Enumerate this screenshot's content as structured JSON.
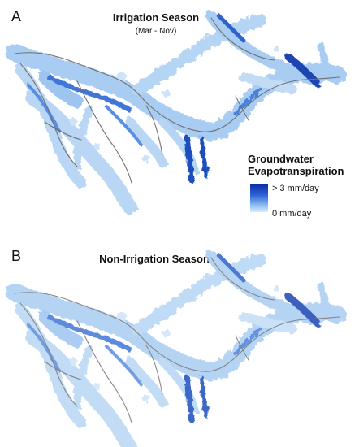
{
  "panel_a": {
    "letter": "A",
    "title": "Irrigation Season",
    "subtitle": "(Mar - Nov)"
  },
  "panel_b": {
    "letter": "B",
    "title": "Non-Irrigation Season"
  },
  "legend": {
    "title_line1": "Groundwater",
    "title_line2": "Evapotranspiration",
    "max_label": "> 3 mm/day",
    "min_label": "0 mm/day",
    "color_high": "#0b2ea8",
    "color_low": "#d6ecff"
  }
}
